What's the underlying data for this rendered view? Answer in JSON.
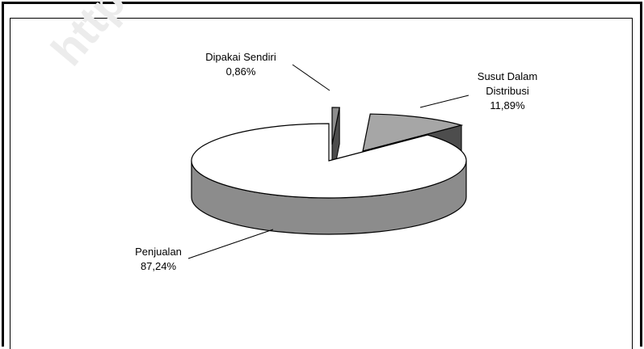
{
  "chart_data": {
    "type": "pie",
    "style": "3d-exploded",
    "title": "",
    "legend": "none",
    "slices": [
      {
        "label": "Penjualan",
        "value": 87.24,
        "value_label": "87,24%",
        "top_color": "#ffffff",
        "side_color": "#8c8c8c"
      },
      {
        "label": "Susut Dalam Distribusi",
        "value": 11.89,
        "value_label": "11,89%",
        "top_color": "#a6a6a6",
        "side_color": "#4d4d4d"
      },
      {
        "label": "Dipakai Sendiri",
        "value": 0.86,
        "value_label": "0,86%",
        "top_color": "#8c8c8c",
        "side_color": "#4d4d4d"
      }
    ]
  },
  "watermark": "http"
}
